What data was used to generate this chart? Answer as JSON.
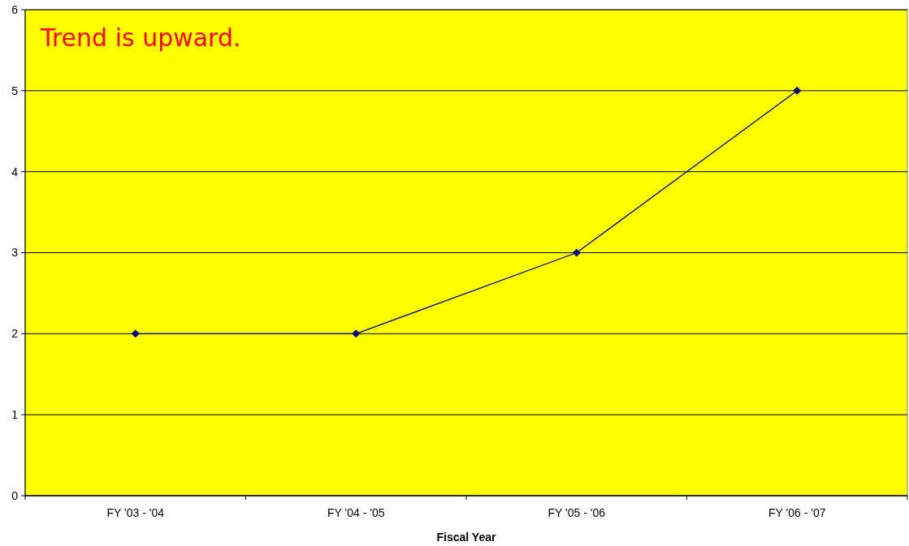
{
  "chart_data": {
    "type": "line",
    "xlabel": "Fiscal Year",
    "annotations": [
      "Trend is upward."
    ],
    "categories": [
      "FY '03 - '04",
      "FY '04 - '05",
      "FY '05 - '06",
      "FY '06 - '07"
    ],
    "series": [
      {
        "color": "#000080",
        "values": [
          2,
          2,
          3,
          5
        ]
      }
    ],
    "ylim": [
      0,
      6
    ],
    "yticks": [
      0,
      1,
      2,
      3,
      4,
      5,
      6
    ],
    "grid": "y",
    "marker": "diamond",
    "line_style": "solid"
  }
}
